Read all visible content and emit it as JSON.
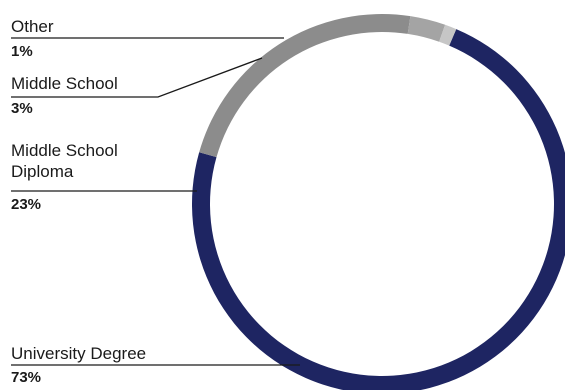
{
  "chart_data": {
    "type": "pie",
    "donut": true,
    "categories": [
      "University Degree",
      "Middle School Diploma",
      "Middle School",
      "Other"
    ],
    "category_labels": [
      "University Degree",
      "Middle School\nDiploma",
      "Middle School",
      "Other"
    ],
    "values": [
      73,
      23,
      3,
      1
    ],
    "value_labels": [
      "73%",
      "23%",
      "3%",
      "1%"
    ],
    "colors": [
      "#1e2562",
      "#8c8c8c",
      "#a4a4a4",
      "#c6c6c6"
    ]
  }
}
